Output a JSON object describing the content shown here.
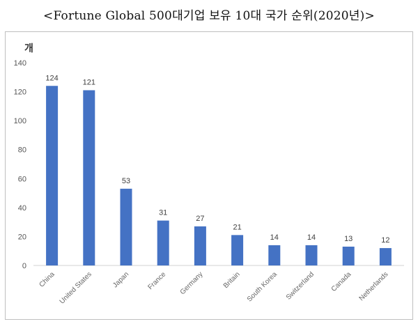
{
  "chart_data": {
    "type": "bar",
    "title": "<Fortune Global 500대기업 보유 10대 국가 순위(2020년)>",
    "ylabel": "개",
    "xlabel": "",
    "categories": [
      "China",
      "United States",
      "Japan",
      "France",
      "Germany",
      "Britain",
      "South Korea",
      "Switzerland",
      "Canada",
      "Netherlands"
    ],
    "values": [
      124,
      121,
      53,
      31,
      27,
      21,
      14,
      14,
      13,
      12
    ],
    "ylim": [
      0,
      140
    ],
    "yticks": [
      0,
      20,
      40,
      60,
      80,
      100,
      120,
      140
    ],
    "grid": false,
    "bar_color": "#4472C4"
  }
}
